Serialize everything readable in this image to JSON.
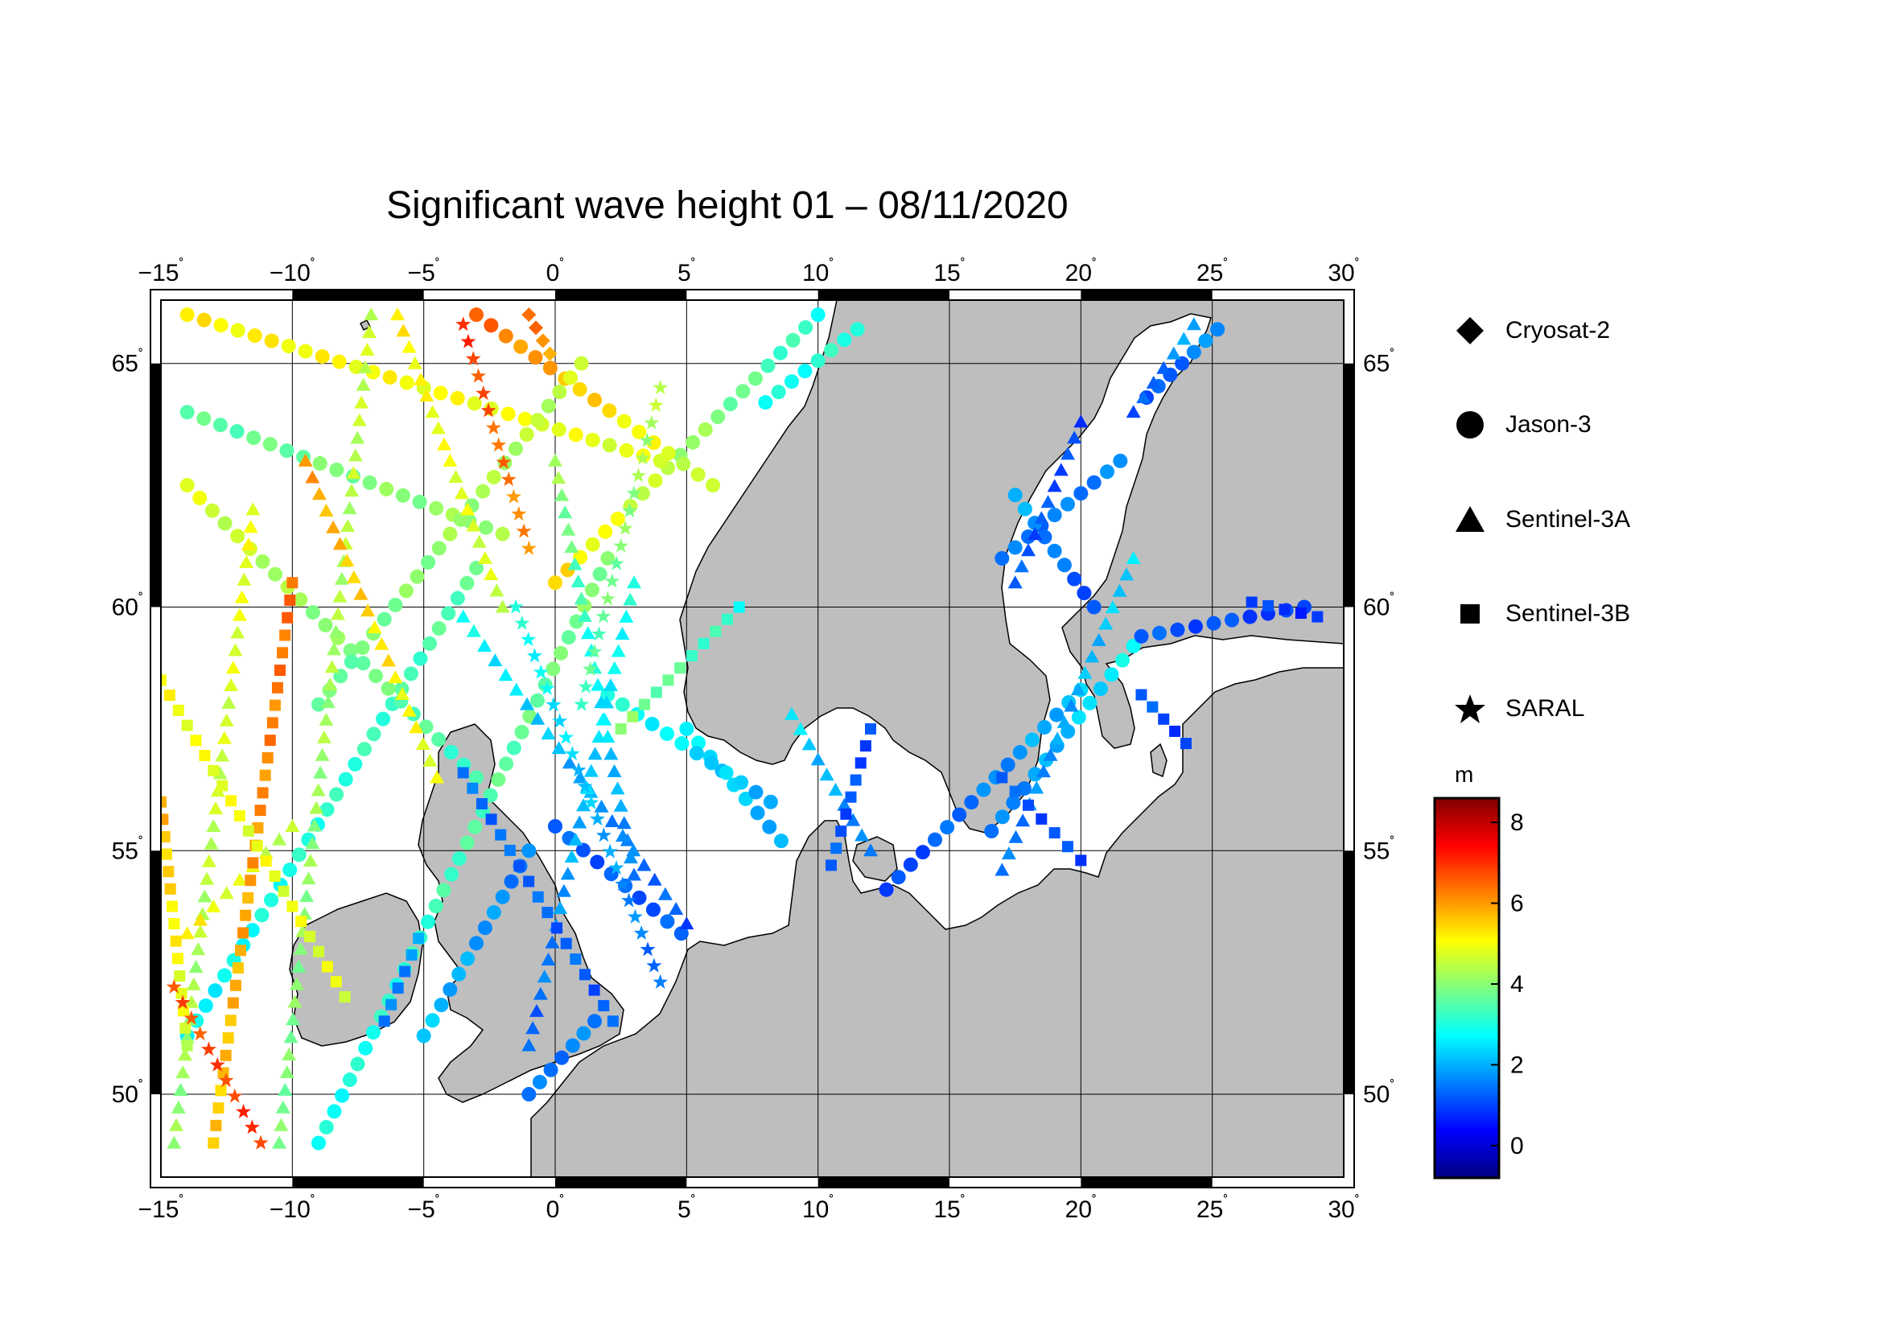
{
  "map": {
    "title": "Significant wave height 01 – 08/11/2020",
    "lon_range": [
      -15,
      30
    ],
    "lat_range": [
      48.3,
      66.3
    ],
    "lon_ticks": [
      {
        "value": -15,
        "label": "−15"
      },
      {
        "value": -10,
        "label": "−10"
      },
      {
        "value": -5,
        "label": "−5"
      },
      {
        "value": 0,
        "label": "0"
      },
      {
        "value": 5,
        "label": "5"
      },
      {
        "value": 10,
        "label": "10"
      },
      {
        "value": 15,
        "label": "15"
      },
      {
        "value": 20,
        "label": "20"
      },
      {
        "value": 25,
        "label": "25"
      },
      {
        "value": 30,
        "label": "30"
      }
    ],
    "lat_ticks": [
      {
        "value": 50,
        "label": "50"
      },
      {
        "value": 55,
        "label": "55"
      },
      {
        "value": 60,
        "label": "60"
      },
      {
        "value": 65,
        "label": "65"
      }
    ],
    "degree_symbol": "˚",
    "land_color": "#bebebe",
    "sea_color": "#ffffff",
    "grid": true
  },
  "legend": {
    "items": [
      {
        "label": "Cryosat-2",
        "symbol": "diamond-icon"
      },
      {
        "label": "Jason-3",
        "symbol": "circle-icon"
      },
      {
        "label": "Sentinel-3A",
        "symbol": "triangle-icon"
      },
      {
        "label": "Sentinel-3B",
        "symbol": "square-icon"
      },
      {
        "label": "SARAL",
        "symbol": "star-icon"
      }
    ]
  },
  "colorbar": {
    "unit": "m",
    "range": [
      -0.8,
      8.6
    ],
    "ticks": [
      {
        "value": 0,
        "label": "0"
      },
      {
        "value": 2,
        "label": "2"
      },
      {
        "value": 4,
        "label": "4"
      },
      {
        "value": 6,
        "label": "6"
      },
      {
        "value": 8,
        "label": "8"
      }
    ],
    "colors": [
      "#00007f",
      "#0000ff",
      "#007fff",
      "#00ffff",
      "#7fff7f",
      "#ffff00",
      "#ff7f00",
      "#ff0000",
      "#7f0000"
    ]
  },
  "tracks": [
    {
      "sat": "Jason-3",
      "from": [
        -14,
        51.2
      ],
      "to": [
        -3,
        60.8
      ],
      "hs": [
        2.6,
        3.6
      ]
    },
    {
      "sat": "Jason-3",
      "from": [
        -9,
        49
      ],
      "to": [
        2,
        61
      ],
      "hs": [
        2.8,
        4.0
      ]
    },
    {
      "sat": "Jason-3",
      "from": [
        -14,
        62.5
      ],
      "to": [
        -3,
        56.5
      ],
      "hs": [
        4.8,
        3.2
      ]
    },
    {
      "sat": "Jason-3",
      "from": [
        0,
        60.5
      ],
      "to": [
        10,
        66
      ],
      "hs": [
        5.4,
        3.0
      ]
    },
    {
      "sat": "Jason-3",
      "from": [
        -14,
        64
      ],
      "to": [
        -2,
        61.5
      ],
      "hs": [
        3.5,
        4.2
      ]
    },
    {
      "sat": "Jason-3",
      "from": [
        -14,
        66
      ],
      "to": [
        4,
        63
      ],
      "hs": [
        5.2,
        4.8
      ]
    },
    {
      "sat": "Jason-3",
      "from": [
        -3,
        66
      ],
      "to": [
        6,
        62.5
      ],
      "hs": [
        6.5,
        4.4
      ]
    },
    {
      "sat": "Jason-3",
      "from": [
        1,
        65
      ],
      "to": [
        -9,
        58
      ],
      "hs": [
        4.6,
        3.6
      ]
    },
    {
      "sat": "Jason-3",
      "from": [
        0,
        55.5
      ],
      "to": [
        4.8,
        53.3
      ],
      "hs": [
        1.2,
        1.2
      ]
    },
    {
      "sat": "Jason-3",
      "from": [
        -5,
        51.2
      ],
      "to": [
        -1,
        55
      ],
      "hs": [
        2.2,
        1.5
      ]
    },
    {
      "sat": "Jason-3",
      "from": [
        -1,
        50
      ],
      "to": [
        1.5,
        51.5
      ],
      "hs": [
        1.4,
        1.6
      ]
    },
    {
      "sat": "Jason-3",
      "from": [
        5,
        57.5
      ],
      "to": [
        8.6,
        55.2
      ],
      "hs": [
        2.6,
        1.9
      ]
    },
    {
      "sat": "Jason-3",
      "from": [
        2,
        58.2
      ],
      "to": [
        8.2,
        56
      ],
      "hs": [
        3.0,
        2.0
      ]
    },
    {
      "sat": "Jason-3",
      "from": [
        12.6,
        54.2
      ],
      "to": [
        20,
        58.3
      ],
      "hs": [
        0.9,
        2.2
      ]
    },
    {
      "sat": "Jason-3",
      "from": [
        16.6,
        55.4
      ],
      "to": [
        22,
        59.2
      ],
      "hs": [
        1.4,
        2.8
      ]
    },
    {
      "sat": "Jason-3",
      "from": [
        17,
        61
      ],
      "to": [
        21.5,
        63
      ],
      "hs": [
        1.4,
        1.6
      ]
    },
    {
      "sat": "Jason-3",
      "from": [
        17.5,
        62.3
      ],
      "to": [
        20.5,
        60
      ],
      "hs": [
        2.0,
        1.0
      ]
    },
    {
      "sat": "Jason-3",
      "from": [
        22.5,
        64.3
      ],
      "to": [
        25.2,
        65.7
      ],
      "hs": [
        1.0,
        1.8
      ]
    },
    {
      "sat": "Jason-3",
      "from": [
        22.3,
        59.4
      ],
      "to": [
        28.5,
        60
      ],
      "hs": [
        1.2,
        0.9
      ]
    },
    {
      "sat": "Jason-3",
      "from": [
        8,
        64.2
      ],
      "to": [
        11.5,
        65.7
      ],
      "hs": [
        2.8,
        3.2
      ]
    },
    {
      "sat": "Sentinel-3A",
      "from": [
        -10.5,
        49
      ],
      "to": [
        -7,
        66
      ],
      "hs": [
        3.8,
        4.6
      ]
    },
    {
      "sat": "Sentinel-3A",
      "from": [
        -14.5,
        49
      ],
      "to": [
        -11.5,
        62
      ],
      "hs": [
        4.0,
        5.0
      ]
    },
    {
      "sat": "Sentinel-3A",
      "from": [
        -9.5,
        63
      ],
      "to": [
        -4.5,
        56.5
      ],
      "hs": [
        6.0,
        4.8
      ]
    },
    {
      "sat": "Sentinel-3A",
      "from": [
        -6,
        66
      ],
      "to": [
        -2,
        60
      ],
      "hs": [
        5.2,
        4.6
      ]
    },
    {
      "sat": "Sentinel-3A",
      "from": [
        0,
        63
      ],
      "to": [
        3,
        54.5
      ],
      "hs": [
        4.2,
        1.4
      ]
    },
    {
      "sat": "Sentinel-3A",
      "from": [
        -3.5,
        59.8
      ],
      "to": [
        5,
        53.5
      ],
      "hs": [
        2.8,
        1.1
      ]
    },
    {
      "sat": "Sentinel-3A",
      "from": [
        3,
        60.5
      ],
      "to": [
        -1,
        51
      ],
      "hs": [
        3.0,
        1.2
      ]
    },
    {
      "sat": "Sentinel-3A",
      "from": [
        9,
        57.8
      ],
      "to": [
        12,
        55
      ],
      "hs": [
        2.5,
        1.4
      ]
    },
    {
      "sat": "Sentinel-3A",
      "from": [
        17,
        54.6
      ],
      "to": [
        22,
        61
      ],
      "hs": [
        1.4,
        2.4
      ]
    },
    {
      "sat": "Sentinel-3A",
      "from": [
        17.5,
        60.5
      ],
      "to": [
        20,
        63.8
      ],
      "hs": [
        1.2,
        1.0
      ]
    },
    {
      "sat": "Sentinel-3A",
      "from": [
        22,
        64
      ],
      "to": [
        24.3,
        65.8
      ],
      "hs": [
        1.0,
        2.0
      ]
    },
    {
      "sat": "Sentinel-3A",
      "from": [
        -14,
        53.3
      ],
      "to": [
        -10,
        55.5
      ],
      "hs": [
        5.2,
        4.4
      ]
    },
    {
      "sat": "Sentinel-3B",
      "from": [
        -13,
        49
      ],
      "to": [
        -10,
        60.5
      ],
      "hs": [
        5.5,
        6.5
      ]
    },
    {
      "sat": "Sentinel-3B",
      "from": [
        -15,
        58.5
      ],
      "to": [
        -8,
        52
      ],
      "hs": [
        5.0,
        4.8
      ]
    },
    {
      "sat": "Sentinel-3B",
      "from": [
        -3.5,
        56.6
      ],
      "to": [
        2.2,
        51.5
      ],
      "hs": [
        1.4,
        1.2
      ]
    },
    {
      "sat": "Sentinel-3B",
      "from": [
        2.5,
        57.5
      ],
      "to": [
        7,
        60
      ],
      "hs": [
        4.0,
        3.0
      ]
    },
    {
      "sat": "Sentinel-3B",
      "from": [
        -6.5,
        51.5
      ],
      "to": [
        -5.2,
        53.2
      ],
      "hs": [
        1.4,
        1.8
      ]
    },
    {
      "sat": "Sentinel-3B",
      "from": [
        10.5,
        54.7
      ],
      "to": [
        12,
        57.5
      ],
      "hs": [
        1.2,
        1.0
      ]
    },
    {
      "sat": "Sentinel-3B",
      "from": [
        17,
        56.5
      ],
      "to": [
        20,
        54.8
      ],
      "hs": [
        1.2,
        1.0
      ]
    },
    {
      "sat": "Sentinel-3B",
      "from": [
        26.5,
        60.1
      ],
      "to": [
        29,
        59.8
      ],
      "hs": [
        0.9,
        0.8
      ]
    },
    {
      "sat": "Sentinel-3B",
      "from": [
        22.3,
        58.2
      ],
      "to": [
        24,
        57.2
      ],
      "hs": [
        1.2,
        0.9
      ]
    },
    {
      "sat": "Sentinel-3B",
      "from": [
        -15,
        56
      ],
      "to": [
        -14,
        51
      ],
      "hs": [
        5.8,
        4.6
      ]
    },
    {
      "sat": "SARAL",
      "from": [
        -14.5,
        52.2
      ],
      "to": [
        -11.2,
        49
      ],
      "hs": [
        6.6,
        7.0
      ]
    },
    {
      "sat": "SARAL",
      "from": [
        -1.5,
        60
      ],
      "to": [
        4,
        52.3
      ],
      "hs": [
        3.0,
        1.3
      ]
    },
    {
      "sat": "SARAL",
      "from": [
        -3.5,
        65.8
      ],
      "to": [
        -1,
        61.2
      ],
      "hs": [
        7.0,
        6.0
      ]
    },
    {
      "sat": "SARAL",
      "from": [
        4,
        64.5
      ],
      "to": [
        1,
        58
      ],
      "hs": [
        4.4,
        3.4
      ]
    },
    {
      "sat": "Cryosat-2",
      "from": [
        -1,
        66
      ],
      "to": [
        -0.2,
        65.2
      ],
      "hs": [
        6.4,
        6.0
      ]
    }
  ]
}
